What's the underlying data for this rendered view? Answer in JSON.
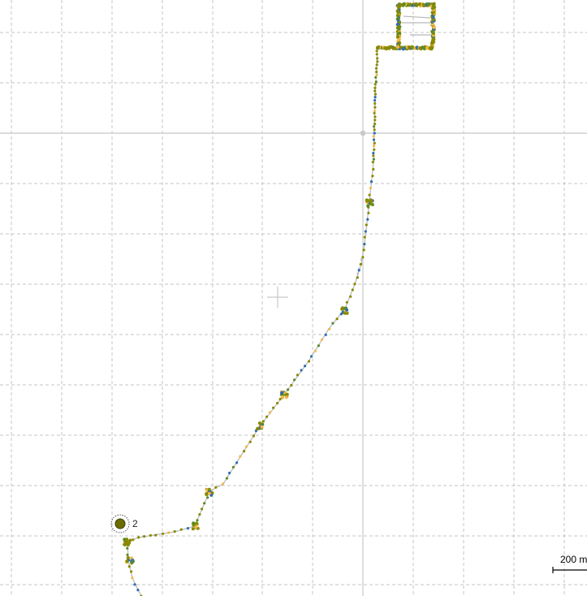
{
  "map": {
    "colors": {
      "background": "#ffffff",
      "grid": "#c4c4c4",
      "track": "#b9b9b9",
      "point_olive": "#8a8a00",
      "point_blue": "#2f6db3",
      "point_orange": "#f2b84b",
      "point_green": "#5a8a2a"
    },
    "marker": {
      "label": "2",
      "color": "#6b6b00",
      "icon": "waypoint-circle-icon"
    },
    "scale_bar": {
      "label": "200 m"
    },
    "crosshair_icon": "crosshair-icon"
  }
}
